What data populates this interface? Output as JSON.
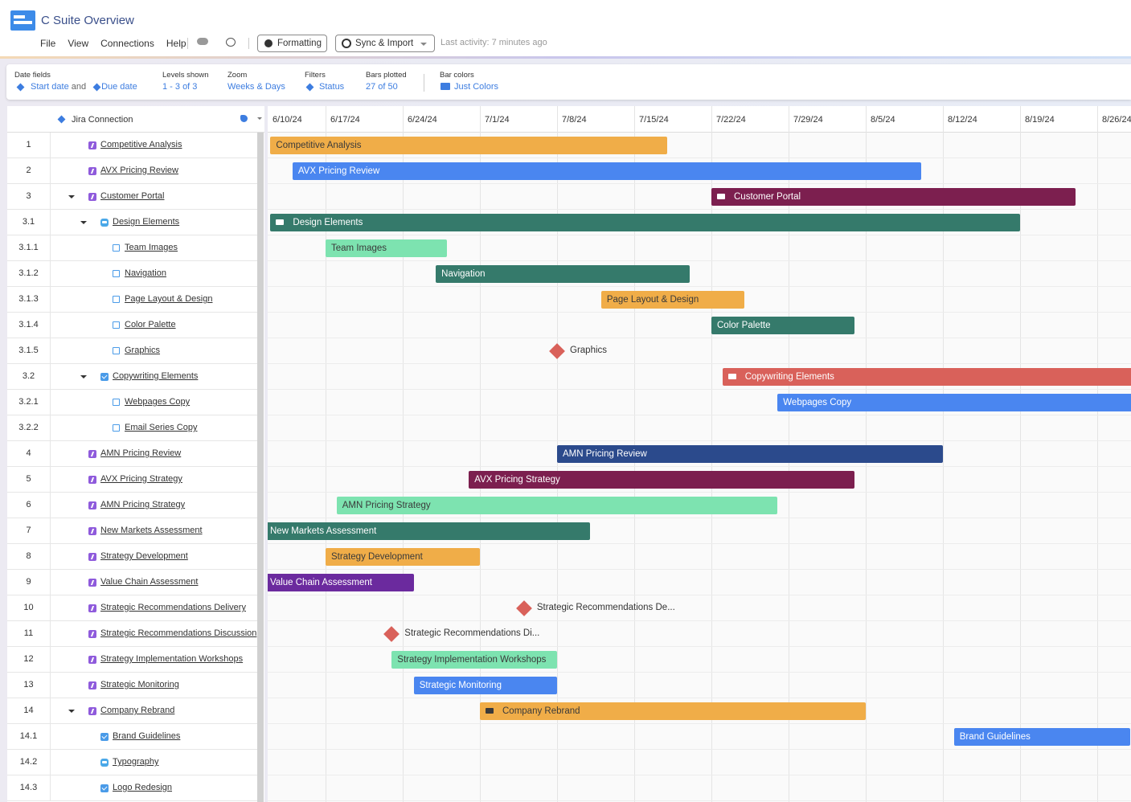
{
  "header": {
    "title": "C Suite Overview",
    "menu": [
      "File",
      "View",
      "Connections",
      "Help"
    ],
    "formatting": "Formatting",
    "sync": "Sync & Import",
    "last_activity_label": "Last activity:",
    "last_activity_value": "7 minutes ago"
  },
  "toolbar": {
    "date_fields": {
      "label": "Date fields",
      "start": "Start date",
      "joiner": "and",
      "end": "Due date"
    },
    "items": [
      {
        "label": "Levels shown",
        "value": "1 - 3 of 3"
      },
      {
        "label": "Zoom",
        "value": "Weeks & Days"
      },
      {
        "label": "Filters",
        "value": "Status"
      },
      {
        "label": "Bars plotted",
        "value": "27 of 50"
      },
      {
        "label": "Bar colors",
        "value": "Just Colors"
      }
    ]
  },
  "grid": {
    "column_title": "Jira Connection",
    "weeks": [
      "6/10/24",
      "6/17/24",
      "6/24/24",
      "7/1/24",
      "7/8/24",
      "7/15/24",
      "7/22/24",
      "7/29/24",
      "8/5/24",
      "8/12/24",
      "8/19/24",
      "8/26/24"
    ],
    "rows": [
      {
        "id": "1",
        "name": "Competitive Analysis",
        "level": 0,
        "icon": "epic",
        "bar": {
          "start": "6/12/24",
          "end": "7/18/24",
          "color": "#f0ad48",
          "label": "Competitive Analysis"
        }
      },
      {
        "id": "2",
        "name": "AVX Pricing Review",
        "level": 0,
        "icon": "epic",
        "bar": {
          "start": "6/14/24",
          "end": "8/10/24",
          "color": "#4a86f0",
          "label": "AVX Pricing Review"
        }
      },
      {
        "id": "3",
        "name": "Customer Portal",
        "level": 0,
        "icon": "epic",
        "has_children": true,
        "bar": {
          "start": "7/22/24",
          "end": "8/24/24",
          "color": "#7c1f4f",
          "label": "Customer Portal"
        }
      },
      {
        "id": "3.1",
        "name": "Design Elements",
        "level": 1,
        "icon": "story",
        "has_children": true,
        "bar": {
          "start": "6/12/24",
          "end": "8/19/24",
          "color": "#357a6b",
          "label": "Design Elements"
        }
      },
      {
        "id": "3.1.1",
        "name": "Team Images",
        "level": 2,
        "icon": "subtask",
        "bar": {
          "start": "6/17/24",
          "end": "6/28/24",
          "color": "#7de3b0",
          "label": "Team Images"
        }
      },
      {
        "id": "3.1.2",
        "name": "Navigation",
        "level": 2,
        "icon": "subtask",
        "bar": {
          "start": "6/27/24",
          "end": "7/20/24",
          "color": "#357a6b",
          "label": "Navigation"
        }
      },
      {
        "id": "3.1.3",
        "name": "Page Layout & Design",
        "level": 2,
        "icon": "subtask",
        "bar": {
          "start": "7/12/24",
          "end": "7/25/24",
          "color": "#f0ad48",
          "label": "Page Layout & Design"
        }
      },
      {
        "id": "3.1.4",
        "name": "Color Palette",
        "level": 2,
        "icon": "subtask",
        "bar": {
          "start": "7/22/24",
          "end": "8/4/24",
          "color": "#357a6b",
          "label": "Color Palette"
        }
      },
      {
        "id": "3.1.5",
        "name": "Graphics",
        "level": 2,
        "icon": "subtask",
        "milestone": {
          "date": "7/8/24",
          "color": "#d9615a",
          "label": "Graphics"
        }
      },
      {
        "id": "3.2",
        "name": "Copywriting Elements",
        "level": 1,
        "icon": "task",
        "has_children": true,
        "bar": {
          "start": "7/23/24",
          "end": "8/31/24",
          "color": "#d9615a",
          "label": "Copywriting Elements"
        }
      },
      {
        "id": "3.2.1",
        "name": "Webpages Copy",
        "level": 2,
        "icon": "subtask",
        "bar": {
          "start": "7/28/24",
          "end": "8/31/24",
          "color": "#4a86f0",
          "label": "Webpages Copy"
        }
      },
      {
        "id": "3.2.2",
        "name": "Email Series Copy",
        "level": 2,
        "icon": "subtask"
      },
      {
        "id": "4",
        "name": "AMN Pricing Review",
        "level": 0,
        "icon": "epic",
        "bar": {
          "start": "7/8/24",
          "end": "8/12/24",
          "color": "#2b4a8c",
          "label": "AMN Pricing Review"
        }
      },
      {
        "id": "5",
        "name": "AVX Pricing Strategy",
        "level": 0,
        "icon": "epic",
        "bar": {
          "start": "6/30/24",
          "end": "8/4/24",
          "color": "#7c1f4f",
          "label": "AVX Pricing Strategy"
        }
      },
      {
        "id": "6",
        "name": "AMN Pricing Strategy",
        "level": 0,
        "icon": "epic",
        "bar": {
          "start": "6/18/24",
          "end": "7/28/24",
          "color": "#7de3b0",
          "label": "AMN Pricing Strategy"
        }
      },
      {
        "id": "7",
        "name": "New Markets Assessment",
        "level": 0,
        "icon": "epic",
        "bar": {
          "start": "6/10/24",
          "end": "7/11/24",
          "color": "#357a6b",
          "label": "New Markets Assessment"
        }
      },
      {
        "id": "8",
        "name": "Strategy Development",
        "level": 0,
        "icon": "epic",
        "bar": {
          "start": "6/17/24",
          "end": "7/1/24",
          "color": "#f0ad48",
          "label": "Strategy Development"
        }
      },
      {
        "id": "9",
        "name": "Value Chain Assessment",
        "level": 0,
        "icon": "epic",
        "bar": {
          "start": "6/10/24",
          "end": "6/25/24",
          "color": "#6b2a9e",
          "label": "Value Chain Assessment"
        }
      },
      {
        "id": "10",
        "name": "Strategic Recommendations Delivery",
        "level": 0,
        "icon": "epic",
        "milestone": {
          "date": "7/5/24",
          "color": "#d9615a",
          "label": "Strategic Recommendations De..."
        }
      },
      {
        "id": "11",
        "name": "Strategic Recommendations Discussion",
        "level": 0,
        "icon": "epic",
        "milestone": {
          "date": "6/23/24",
          "color": "#d9615a",
          "label": "Strategic Recommendations Di..."
        }
      },
      {
        "id": "12",
        "name": "Strategy Implementation Workshops",
        "level": 0,
        "icon": "epic",
        "bar": {
          "start": "6/23/24",
          "end": "7/8/24",
          "color": "#7de3b0",
          "label": "Strategy Implementation Workshops"
        }
      },
      {
        "id": "13",
        "name": "Strategic Monitoring",
        "level": 0,
        "icon": "epic",
        "bar": {
          "start": "6/25/24",
          "end": "7/8/24",
          "color": "#4a86f0",
          "label": "Strategic Monitoring"
        }
      },
      {
        "id": "14",
        "name": "Company Rebrand",
        "level": 0,
        "icon": "epic",
        "has_children": true,
        "bar": {
          "start": "7/1/24",
          "end": "8/5/24",
          "color": "#f0ad48",
          "label": "Company Rebrand"
        }
      },
      {
        "id": "14.1",
        "name": "Brand Guidelines",
        "level": 1,
        "icon": "task",
        "bar": {
          "start": "8/13/24",
          "end": "8/29/24",
          "color": "#4a86f0",
          "label": "Brand Guidelines"
        }
      },
      {
        "id": "14.2",
        "name": "Typography",
        "level": 1,
        "icon": "story"
      },
      {
        "id": "14.3",
        "name": "Logo Redesign",
        "level": 1,
        "icon": "task"
      }
    ]
  }
}
